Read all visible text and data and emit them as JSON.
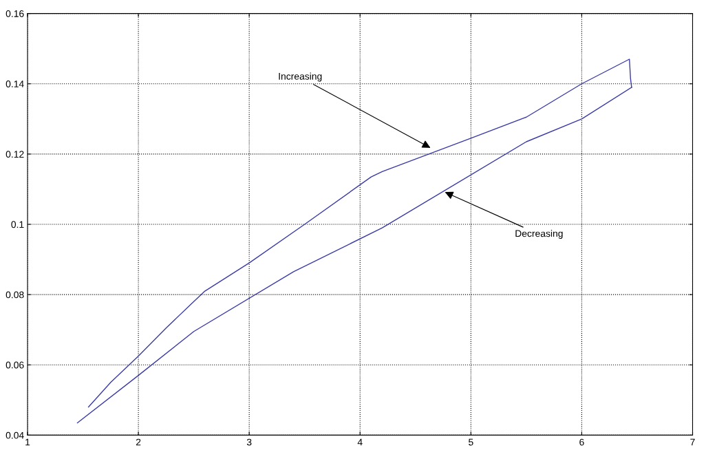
{
  "chart_data": {
    "type": "line",
    "series": [
      {
        "color": "#3a3aa8",
        "x": [
          1.55,
          1.75,
          2.0,
          2.25,
          2.5,
          2.6,
          3.0,
          3.5,
          4.1,
          4.2,
          5.0,
          5.5,
          6.0,
          6.43,
          6.44,
          6.45
        ],
        "values": [
          0.048,
          0.055,
          0.0625,
          0.0705,
          0.078,
          0.081,
          0.089,
          0.1,
          0.1135,
          0.115,
          0.1245,
          0.1305,
          0.14,
          0.147,
          0.1415,
          0.139
        ]
      },
      {
        "color": "#3a3aa8",
        "x": [
          6.45,
          6.0,
          5.5,
          4.2,
          3.4,
          2.5,
          2.0,
          1.45
        ],
        "values": [
          0.139,
          0.13,
          0.1235,
          0.099,
          0.0865,
          0.0695,
          0.057,
          0.0435
        ]
      }
    ],
    "xlim": [
      1,
      7
    ],
    "xticks": [
      1,
      2,
      3,
      4,
      5,
      6,
      7
    ],
    "ylim": [
      0.04,
      0.16
    ],
    "yticks": [
      0.04,
      0.06,
      0.08,
      0.1,
      0.12,
      0.14,
      0.16
    ],
    "grid": true,
    "marker": "none",
    "line_style": "solid",
    "annotations": [
      {
        "text": "Increasing",
        "x": 4.65,
        "y": 0.1215
      },
      {
        "text": "Decreasing",
        "x": 4.75,
        "y": 0.1094
      }
    ]
  }
}
